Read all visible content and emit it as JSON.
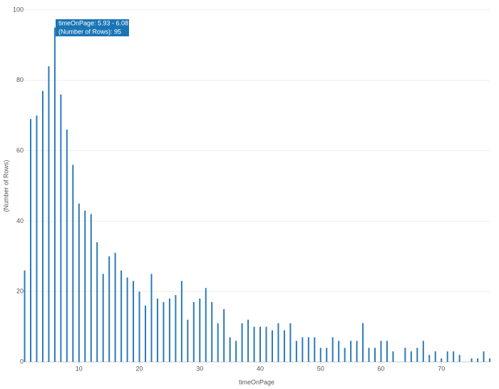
{
  "chart_data": {
    "type": "bar",
    "x_label": "timeOnPage",
    "y_label": "(Number of Rows)",
    "x": [
      1,
      2,
      3,
      4,
      5,
      6,
      7,
      8,
      9,
      10,
      11,
      12,
      13,
      14,
      15,
      16,
      17,
      18,
      19,
      20,
      21,
      22,
      23,
      24,
      25,
      26,
      27,
      28,
      29,
      30,
      31,
      32,
      33,
      34,
      35,
      36,
      37,
      38,
      39,
      40,
      41,
      42,
      43,
      44,
      45,
      46,
      47,
      48,
      49,
      50,
      51,
      52,
      53,
      54,
      55,
      56,
      57,
      58,
      59,
      60,
      61,
      62,
      63,
      64,
      65,
      66,
      67,
      68,
      69,
      70,
      71,
      72,
      73,
      74,
      75,
      76,
      77,
      78
    ],
    "values": [
      26,
      69,
      70,
      77,
      84,
      95,
      76,
      66,
      56,
      45,
      43,
      42,
      34,
      25,
      30,
      31,
      26,
      24,
      23,
      20,
      16,
      25,
      18,
      17,
      18,
      19,
      23,
      12,
      17,
      18,
      21,
      17,
      11,
      15,
      7,
      6,
      11,
      12,
      10,
      10,
      10,
      9,
      11,
      9,
      11,
      6,
      7,
      7,
      7,
      4,
      4,
      7,
      6,
      4,
      6,
      6,
      11,
      4,
      4,
      6,
      6,
      3,
      0,
      4,
      3,
      4,
      6,
      2,
      3,
      1,
      3,
      3,
      2,
      0,
      1,
      1,
      3,
      1
    ],
    "color": "#2a7ab8",
    "xlim": [
      0.7,
      78
    ],
    "xticks": [
      10,
      20,
      30,
      40,
      50,
      60,
      70
    ],
    "ylim": [
      0,
      100
    ],
    "yticks": [
      0,
      20,
      40,
      60,
      80,
      100
    ],
    "grid": true,
    "tooltip": {
      "lines": [
        "timeOnPage: 5.93 - 6.08",
        "(Number of Rows): 95"
      ]
    }
  }
}
